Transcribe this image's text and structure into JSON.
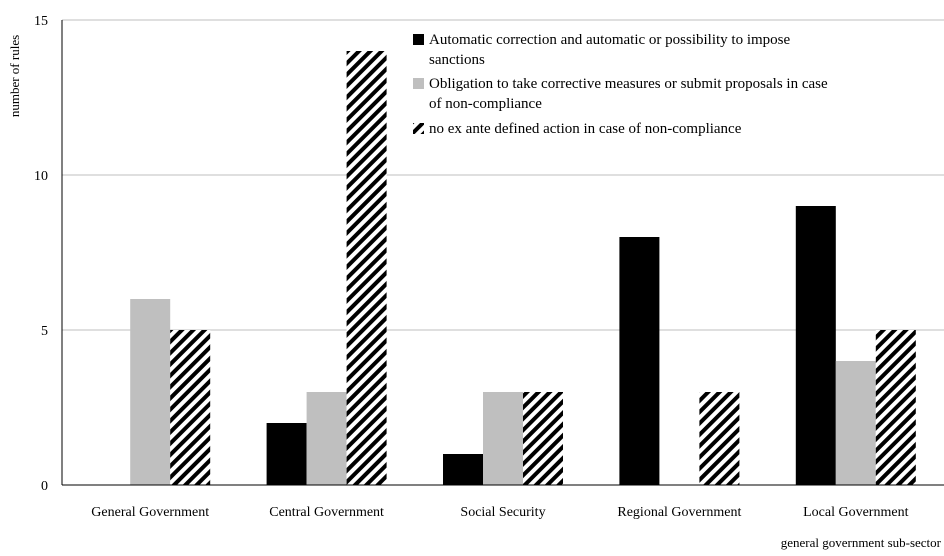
{
  "chart_data": {
    "type": "bar",
    "title": "",
    "xlabel": "general government sub-sector",
    "ylabel": "number of rules",
    "ylim": [
      0,
      15
    ],
    "yticks": [
      0,
      5,
      10,
      15
    ],
    "grid": true,
    "legend_position": "top-right",
    "categories": [
      "General Government",
      "Central Government",
      "Social Security",
      "Regional Government",
      "Local Government"
    ],
    "series": [
      {
        "name": "Automatic correction and automatic or possibility to impose sanctions",
        "values": [
          0,
          2,
          1,
          8,
          9
        ],
        "color": "#000000",
        "pattern": "solid"
      },
      {
        "name": "Obligation to take corrective measures or submit proposals in case of non-compliance",
        "values": [
          6,
          3,
          3,
          0,
          4
        ],
        "color": "#bfbfbf",
        "pattern": "solid"
      },
      {
        "name": "no ex ante defined action in case of non-compliance",
        "values": [
          5,
          14,
          3,
          3,
          5
        ],
        "color": "#000000",
        "pattern": "diagonal-stripes"
      }
    ],
    "legend_lines": [
      [
        "Automatic correction and automatic or possibility to impose",
        "sanctions"
      ],
      [
        "Obligation to take corrective measures or submit proposals in case",
        "of non-compliance"
      ],
      [
        "no ex ante defined action in case of non-compliance"
      ]
    ]
  }
}
